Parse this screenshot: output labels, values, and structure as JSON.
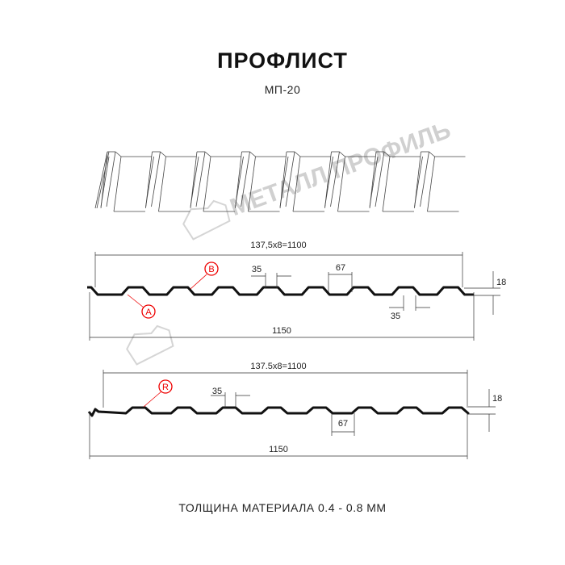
{
  "header": {
    "title": "ПРОФЛИСТ",
    "subtitle": "МП-20"
  },
  "watermark": {
    "text": "МЕТАЛЛ ПРОФИЛЬ",
    "color": "#d0d0d0"
  },
  "profile_a": {
    "span_label": "137,5x8=1100",
    "total_label": "1150",
    "crest_label": "35",
    "rib_label": "67",
    "valley_label": "35",
    "height_label": "18",
    "markers": [
      "B",
      "A"
    ]
  },
  "profile_b": {
    "span_label": "137.5x8=1100",
    "total_label": "1150",
    "crest_label": "35",
    "rib_label": "67",
    "height_label": "18",
    "markers": [
      "R"
    ]
  },
  "footer": {
    "text": "ТОЛЩИНА МАТЕРИАЛА 0.4 - 0.8 ММ"
  },
  "colors": {
    "marker": "#e00000",
    "line": "#111111"
  }
}
